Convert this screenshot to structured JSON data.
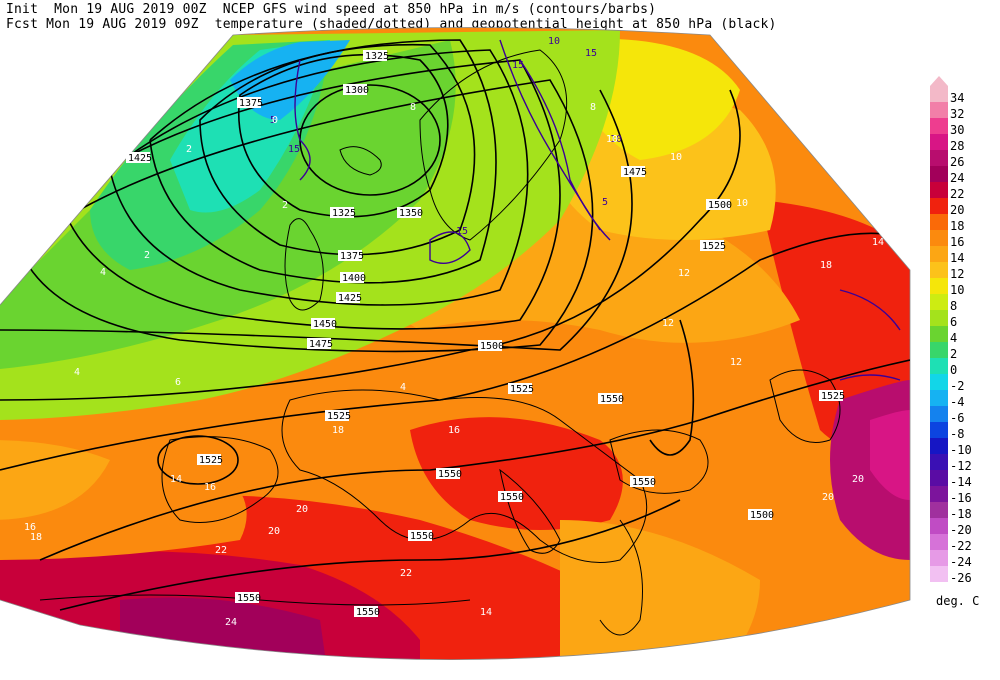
{
  "header": {
    "line1": "Init  Mon 19 AUG 2019 00Z  NCEP GFS wind speed at 850 hPa in m/s (contours/barbs)",
    "line2": "Fcst Mon 19 AUG 2019 09Z  temperature (shaded/dotted) and geopotential height at 850 hPa (black)"
  },
  "legend": {
    "units": "deg. C",
    "entries": [
      {
        "label": "34",
        "color": "#f3b9c8"
      },
      {
        "label": "32",
        "color": "#f27fa8"
      },
      {
        "label": "30",
        "color": "#ee3d8f"
      },
      {
        "label": "28",
        "color": "#d81585"
      },
      {
        "label": "26",
        "color": "#b80d6e"
      },
      {
        "label": "24",
        "color": "#a2005a"
      },
      {
        "label": "22",
        "color": "#c8003a"
      },
      {
        "label": "20",
        "color": "#f0220e"
      },
      {
        "label": "18",
        "color": "#fa6a08"
      },
      {
        "label": "16",
        "color": "#fb8a0e"
      },
      {
        "label": "14",
        "color": "#fca614"
      },
      {
        "label": "12",
        "color": "#fcc21a"
      },
      {
        "label": "10",
        "color": "#f5e60a"
      },
      {
        "label": "8",
        "color": "#cdec12"
      },
      {
        "label": "6",
        "color": "#a4e21c"
      },
      {
        "label": "4",
        "color": "#6ad430"
      },
      {
        "label": "2",
        "color": "#38d66a"
      },
      {
        "label": "0",
        "color": "#1ee0b4"
      },
      {
        "label": "-2",
        "color": "#12d6e8"
      },
      {
        "label": "-4",
        "color": "#16b2f2"
      },
      {
        "label": "-6",
        "color": "#1482ee"
      },
      {
        "label": "-8",
        "color": "#0c44e0"
      },
      {
        "label": "-10",
        "color": "#1616c4"
      },
      {
        "label": "-12",
        "color": "#3a10b4"
      },
      {
        "label": "-14",
        "color": "#5a0ca4"
      },
      {
        "label": "-16",
        "color": "#7c149c"
      },
      {
        "label": "-18",
        "color": "#a0309e"
      },
      {
        "label": "-20",
        "color": "#c04cc4"
      },
      {
        "label": "-22",
        "color": "#d672d8"
      },
      {
        "label": "-24",
        "color": "#e69ae6"
      },
      {
        "label": "-26",
        "color": "#f2c0f2"
      }
    ]
  },
  "contour_labels": [
    "1325",
    "1375",
    "1300",
    "1425",
    "1325",
    "1350",
    "1375",
    "1400",
    "1425",
    "1450",
    "1475",
    "1475",
    "1500",
    "1525",
    "1525",
    "1500",
    "1525",
    "1525",
    "1525",
    "1550",
    "1550",
    "1550",
    "1550",
    "1550",
    "1550",
    "1550",
    "1500"
  ],
  "wind_labels": [
    "15",
    "5",
    "10",
    "15",
    "15",
    "5",
    "10",
    "15"
  ],
  "temp_labels": [
    "2",
    "0",
    "2",
    "4",
    "2",
    "4",
    "6",
    "4",
    "8",
    "10",
    "10",
    "12",
    "12",
    "14",
    "14",
    "16",
    "16",
    "18",
    "18",
    "20",
    "20",
    "20",
    "22",
    "22",
    "24",
    "20",
    "18",
    "16",
    "14",
    "12",
    "10",
    "8"
  ],
  "colors": {
    "outside": "#ffffff",
    "height_contour": "#000000",
    "wind_contour": "#3c0096",
    "coast": "#000000"
  }
}
